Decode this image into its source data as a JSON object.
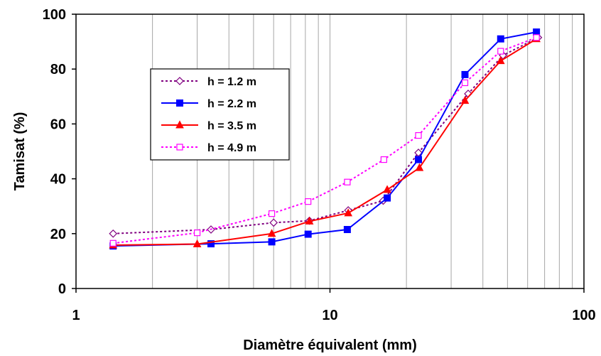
{
  "chart_data": {
    "type": "line",
    "xlabel": "Diamètre équivalent (mm)",
    "ylabel": "Tamisat (%)",
    "xscale": "log",
    "xlim": [
      1,
      100
    ],
    "ylim": [
      0,
      100
    ],
    "x_ticks": [
      "1",
      "10",
      "100"
    ],
    "y_ticks": [
      "0",
      "20",
      "40",
      "60",
      "80",
      "100"
    ],
    "grid": "vertical-minor-log",
    "legend_position": "top-left inside plot",
    "series": [
      {
        "name": "h = 1.2 m",
        "color": "#800080",
        "line_style": "dotted",
        "marker": "diamond-open",
        "points": [
          [
            1.4,
            20
          ],
          [
            3.4,
            21.5
          ],
          [
            6,
            24
          ],
          [
            8.3,
            24.7
          ],
          [
            11.8,
            28.5
          ],
          [
            16.2,
            32
          ],
          [
            22.3,
            49.5
          ],
          [
            35,
            71
          ],
          [
            48,
            85
          ],
          [
            66,
            91.5
          ]
        ]
      },
      {
        "name": "h = 2.2 m",
        "color": "#0000ff",
        "line_style": "solid",
        "marker": "square-filled",
        "points": [
          [
            1.4,
            15.5
          ],
          [
            3.4,
            16.3
          ],
          [
            5.9,
            17
          ],
          [
            8.2,
            19.8
          ],
          [
            11.7,
            21.5
          ],
          [
            16.8,
            33
          ],
          [
            22.3,
            47
          ],
          [
            34,
            78
          ],
          [
            47,
            91
          ],
          [
            65,
            93.5
          ]
        ]
      },
      {
        "name": "h = 3.5 m",
        "color": "#ff0000",
        "line_style": "solid",
        "marker": "triangle-filled",
        "points": [
          [
            1.4,
            15.8
          ],
          [
            3,
            16.2
          ],
          [
            5.9,
            20
          ],
          [
            8.3,
            24.5
          ],
          [
            11.8,
            27.5
          ],
          [
            16.8,
            36
          ],
          [
            22.5,
            44
          ],
          [
            34,
            68.5
          ],
          [
            47,
            83
          ],
          [
            65,
            91
          ]
        ]
      },
      {
        "name": "h = 4.9 m",
        "color": "#ff00ff",
        "line_style": "dotted",
        "marker": "square-open",
        "points": [
          [
            1.4,
            16.5
          ],
          [
            3,
            20.3
          ],
          [
            5.9,
            27.3
          ],
          [
            8.2,
            31.7
          ],
          [
            11.7,
            38.8
          ],
          [
            16.3,
            47
          ],
          [
            22.3,
            55.8
          ],
          [
            34,
            75
          ],
          [
            47,
            86.5
          ],
          [
            65,
            91.5
          ]
        ]
      }
    ]
  }
}
